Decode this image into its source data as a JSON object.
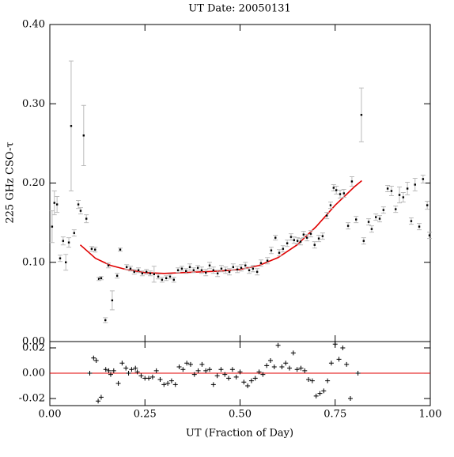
{
  "chart_data": [
    {
      "type": "scatter",
      "title": "UT Date: 20050131",
      "ylabel": "225 GHz CSO-τ",
      "ylim": [
        0,
        0.4
      ],
      "yticks": [
        {
          "value": 0,
          "label": "0.00"
        },
        {
          "value": 0.1,
          "label": "0.10"
        },
        {
          "value": 0.2,
          "label": "0.20"
        },
        {
          "value": 0.3,
          "label": "0.30"
        },
        {
          "value": 0.4,
          "label": "0.40"
        }
      ],
      "color": "#000000",
      "error_color": "#bbbbbb",
      "x": [
        0.006,
        0.012,
        0.019,
        0.027,
        0.035,
        0.042,
        0.05,
        0.056,
        0.064,
        0.075,
        0.081,
        0.089,
        0.096,
        0.11,
        0.119,
        0.129,
        0.135,
        0.146,
        0.154,
        0.164,
        0.177,
        0.185,
        0.202,
        0.212,
        0.222,
        0.233,
        0.243,
        0.254,
        0.264,
        0.274,
        0.285,
        0.295,
        0.306,
        0.316,
        0.326,
        0.337,
        0.347,
        0.358,
        0.368,
        0.378,
        0.389,
        0.399,
        0.41,
        0.42,
        0.43,
        0.441,
        0.451,
        0.462,
        0.472,
        0.482,
        0.493,
        0.503,
        0.514,
        0.524,
        0.534,
        0.545,
        0.555,
        0.572,
        0.582,
        0.593,
        0.603,
        0.613,
        0.624,
        0.634,
        0.642,
        0.651,
        0.659,
        0.667,
        0.676,
        0.686,
        0.696,
        0.707,
        0.717,
        0.728,
        0.738,
        0.746,
        0.753,
        0.763,
        0.773,
        0.784,
        0.794,
        0.805,
        0.819,
        0.825,
        0.838,
        0.846,
        0.857,
        0.867,
        0.877,
        0.888,
        0.898,
        0.909,
        0.919,
        0.929,
        0.94,
        0.95,
        0.96,
        0.971,
        0.981,
        0.992,
        0.998
      ],
      "values": [
        0.145,
        0.175,
        0.173,
        0.105,
        0.127,
        0.1,
        0.125,
        0.272,
        0.137,
        0.173,
        0.165,
        0.26,
        0.155,
        0.117,
        0.116,
        0.079,
        0.08,
        0.027,
        0.096,
        0.052,
        0.083,
        0.116,
        0.094,
        0.092,
        0.088,
        0.09,
        0.086,
        0.088,
        0.086,
        0.085,
        0.082,
        0.078,
        0.08,
        0.082,
        0.078,
        0.09,
        0.092,
        0.089,
        0.094,
        0.09,
        0.093,
        0.09,
        0.087,
        0.096,
        0.09,
        0.086,
        0.092,
        0.09,
        0.088,
        0.094,
        0.091,
        0.093,
        0.096,
        0.09,
        0.092,
        0.088,
        0.099,
        0.102,
        0.115,
        0.131,
        0.112,
        0.117,
        0.124,
        0.132,
        0.128,
        0.127,
        0.126,
        0.135,
        0.131,
        0.136,
        0.122,
        0.13,
        0.133,
        0.159,
        0.172,
        0.194,
        0.191,
        0.186,
        0.187,
        0.146,
        0.202,
        0.154,
        0.286,
        0.127,
        0.151,
        0.142,
        0.157,
        0.155,
        0.166,
        0.193,
        0.19,
        0.167,
        0.185,
        0.182,
        0.193,
        0.152,
        0.198,
        0.145,
        0.205,
        0.172,
        0.134
      ],
      "errors": [
        0.02,
        0.015,
        0.01,
        0.004,
        0.005,
        0.01,
        0.006,
        0.082,
        0.004,
        0.005,
        0.004,
        0.038,
        0.005,
        0.003,
        0.003,
        0.002,
        0.002,
        0.003,
        0.003,
        0.012,
        0.003,
        0.002,
        0.003,
        0.003,
        0.003,
        0.003,
        0.003,
        0.003,
        0.003,
        0.01,
        0.003,
        0.003,
        0.003,
        0.003,
        0.003,
        0.003,
        0.003,
        0.003,
        0.004,
        0.003,
        0.003,
        0.004,
        0.004,
        0.004,
        0.004,
        0.004,
        0.004,
        0.004,
        0.004,
        0.004,
        0.004,
        0.004,
        0.004,
        0.004,
        0.004,
        0.004,
        0.004,
        0.004,
        0.004,
        0.003,
        0.004,
        0.004,
        0.004,
        0.004,
        0.004,
        0.004,
        0.004,
        0.004,
        0.004,
        0.004,
        0.004,
        0.004,
        0.004,
        0.004,
        0.004,
        0.004,
        0.005,
        0.005,
        0.005,
        0.004,
        0.006,
        0.004,
        0.034,
        0.004,
        0.004,
        0.004,
        0.004,
        0.004,
        0.004,
        0.004,
        0.006,
        0.004,
        0.01,
        0.006,
        0.008,
        0.004,
        0.008,
        0.004,
        0.005,
        0.005,
        0.004
      ],
      "fit_color": "#e00000",
      "fit_x": [
        0.08,
        0.12,
        0.16,
        0.2,
        0.25,
        0.3,
        0.35,
        0.4,
        0.45,
        0.5,
        0.55,
        0.6,
        0.65,
        0.7,
        0.75,
        0.8,
        0.82
      ],
      "fit_values": [
        0.122,
        0.105,
        0.096,
        0.091,
        0.087,
        0.086,
        0.087,
        0.088,
        0.089,
        0.091,
        0.096,
        0.106,
        0.122,
        0.145,
        0.172,
        0.195,
        0.203
      ]
    },
    {
      "type": "scatter",
      "marker": "plus",
      "color": "#000000",
      "xlabel": "UT (Fraction of Day)",
      "xlim": [
        0,
        1
      ],
      "xticks": [
        {
          "value": 0,
          "label": "0.00"
        },
        {
          "value": 0.25,
          "label": "0.25"
        },
        {
          "value": 0.5,
          "label": "0.50"
        },
        {
          "value": 0.75,
          "label": "0.75"
        },
        {
          "value": 1,
          "label": "1.00"
        }
      ],
      "ylim": [
        -0.0256,
        0.025
      ],
      "yticks": [
        {
          "value": 0.02,
          "label": "0.02"
        },
        {
          "value": 0,
          "label": "0.00"
        },
        {
          "value": -0.02,
          "label": "-0.02"
        }
      ],
      "hline": 0,
      "hline_color": "#e00000",
      "x": [
        0.105,
        0.115,
        0.122,
        0.127,
        0.135,
        0.147,
        0.155,
        0.16,
        0.168,
        0.18,
        0.19,
        0.2,
        0.207,
        0.215,
        0.225,
        0.23,
        0.24,
        0.25,
        0.26,
        0.27,
        0.28,
        0.29,
        0.3,
        0.31,
        0.32,
        0.33,
        0.34,
        0.35,
        0.36,
        0.37,
        0.38,
        0.39,
        0.4,
        0.41,
        0.42,
        0.43,
        0.44,
        0.45,
        0.46,
        0.47,
        0.48,
        0.49,
        0.5,
        0.51,
        0.52,
        0.53,
        0.54,
        0.55,
        0.56,
        0.57,
        0.58,
        0.59,
        0.6,
        0.61,
        0.62,
        0.63,
        0.64,
        0.65,
        0.66,
        0.67,
        0.68,
        0.69,
        0.7,
        0.71,
        0.72,
        0.73,
        0.74,
        0.75,
        0.76,
        0.77,
        0.78,
        0.79,
        0.81
      ],
      "values": [
        0.0,
        0.012,
        0.01,
        -0.022,
        -0.019,
        0.003,
        0.002,
        -0.001,
        0.002,
        -0.008,
        0.008,
        0.004,
        0.0,
        0.003,
        0.004,
        0.001,
        -0.002,
        -0.004,
        -0.004,
        -0.003,
        0.002,
        -0.005,
        -0.009,
        -0.008,
        -0.006,
        -0.009,
        0.005,
        0.003,
        0.008,
        0.007,
        -0.001,
        0.002,
        0.007,
        0.002,
        0.003,
        -0.009,
        -0.002,
        0.003,
        -0.001,
        -0.004,
        0.003,
        -0.003,
        0.001,
        -0.007,
        -0.01,
        -0.006,
        -0.004,
        0.001,
        -0.001,
        0.006,
        0.01,
        0.005,
        0.022,
        0.005,
        0.008,
        0.004,
        0.016,
        0.003,
        0.004,
        0.002,
        -0.005,
        -0.006,
        -0.018,
        -0.016,
        -0.014,
        -0.006,
        0.008,
        0.023,
        0.011,
        0.02,
        0.007,
        -0.02,
        0.0
      ]
    }
  ]
}
